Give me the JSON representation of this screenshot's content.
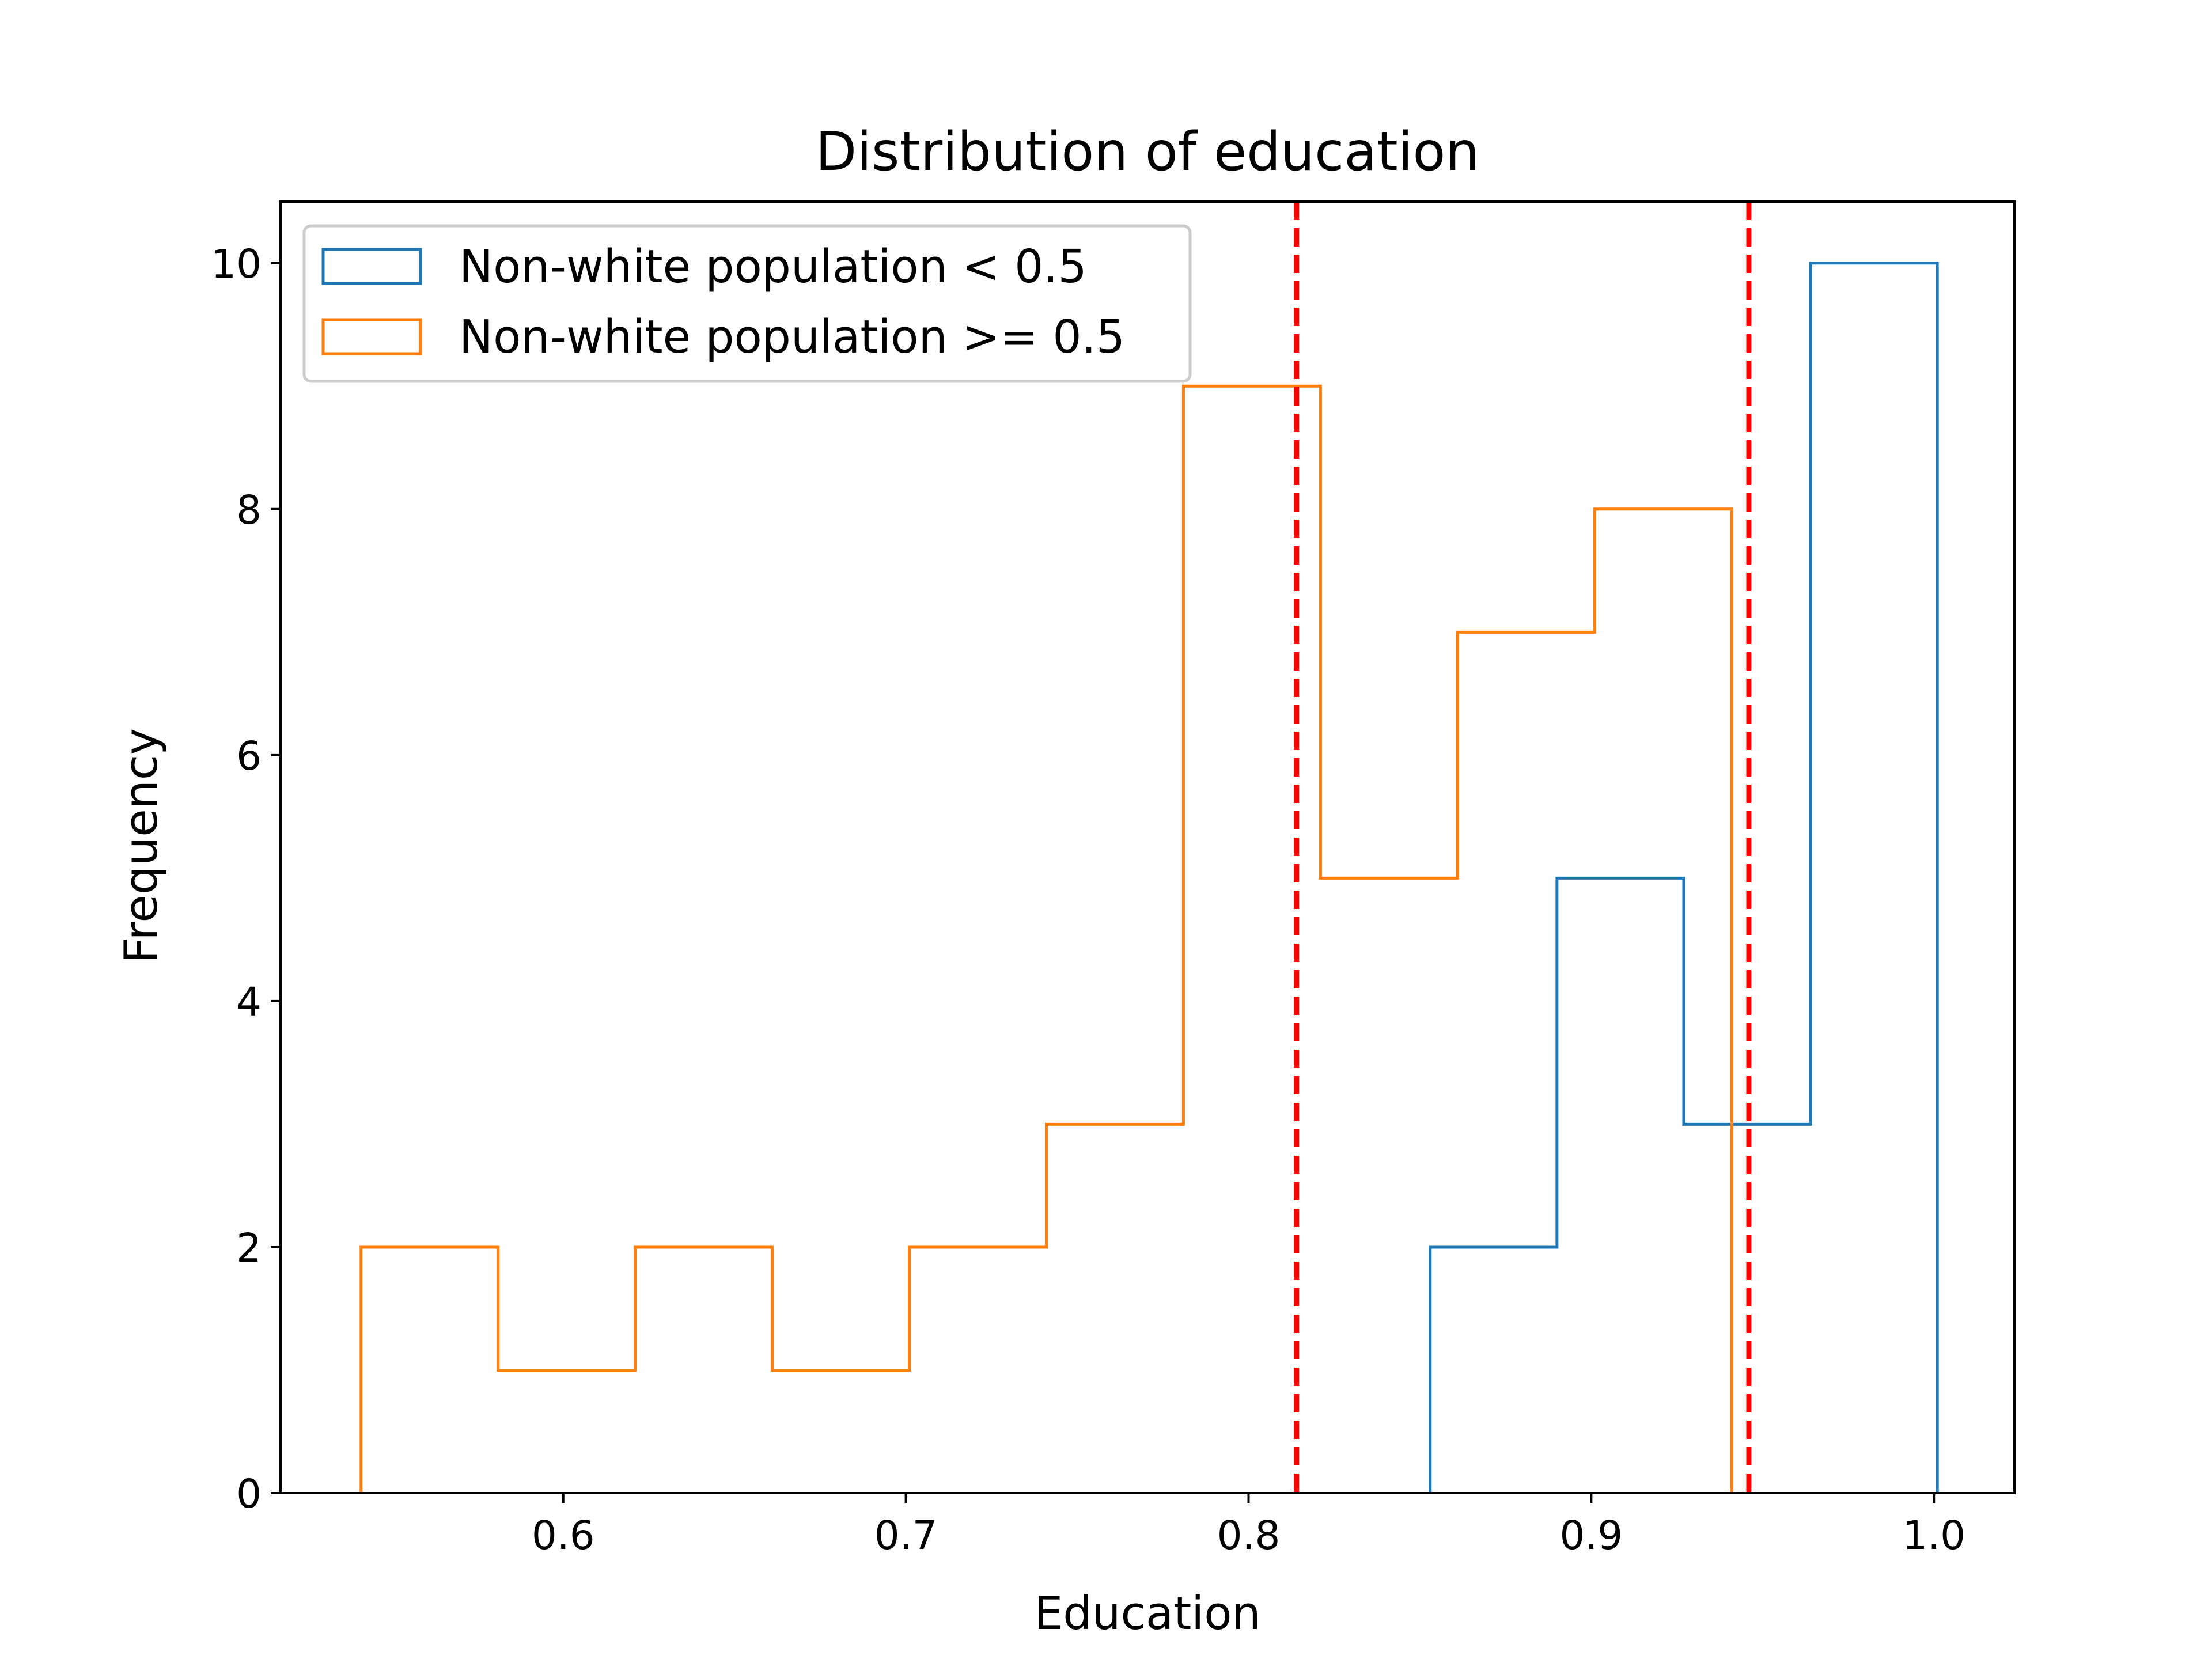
{
  "chart_data": {
    "type": "histogram",
    "title": "Distribution of education",
    "xlabel": "Education",
    "ylabel": "Frequency",
    "xlim": [
      0.5175,
      1.0235
    ],
    "ylim": [
      0,
      10.5
    ],
    "xticks": [
      0.6,
      0.7,
      0.8,
      0.9,
      1.0
    ],
    "xtick_labels": [
      "0.6",
      "0.7",
      "0.8",
      "0.9",
      "1.0"
    ],
    "yticks": [
      0,
      2,
      4,
      6,
      8,
      10
    ],
    "ytick_labels": [
      "0",
      "2",
      "4",
      "6",
      "8",
      "10"
    ],
    "grid": false,
    "legend_position": "upper-left",
    "series": [
      {
        "name": "Non-white population < 0.5",
        "color": "#1f77b4",
        "histtype": "step",
        "bin_edges": [
          0.853,
          0.89,
          0.927,
          0.964,
          1.001
        ],
        "counts": [
          2,
          5,
          3,
          10
        ]
      },
      {
        "name": "Non-white population >= 0.5",
        "color": "#ff7f0e",
        "histtype": "step",
        "bin_edges": [
          0.541,
          0.581,
          0.621,
          0.661,
          0.701,
          0.741,
          0.781,
          0.821,
          0.861,
          0.901,
          0.941
        ],
        "counts": [
          2,
          1,
          2,
          1,
          2,
          3,
          9,
          5,
          7,
          8
        ]
      }
    ],
    "reference_lines": [
      {
        "x": 0.814,
        "color": "#ff0000",
        "style": "dashed"
      },
      {
        "x": 0.946,
        "color": "#ff0000",
        "style": "dashed"
      }
    ]
  }
}
